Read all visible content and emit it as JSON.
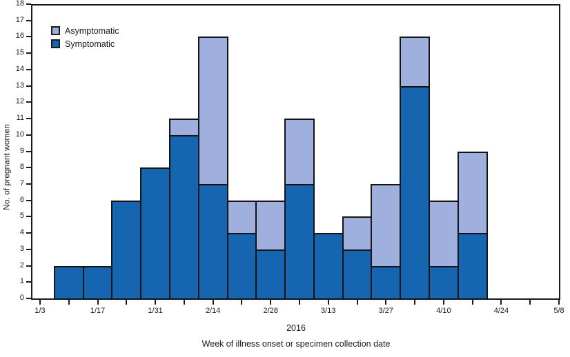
{
  "figure": {
    "ylabel": "No. of pregnant women",
    "x_axis_year": "2016",
    "xlabel": "Week of illness onset or specimen collection date"
  },
  "legend": [
    {
      "label": "Asymptomatic",
      "color": "#a0b0de"
    },
    {
      "label": "Symptomatic",
      "color": "#1665b0"
    }
  ],
  "colors": {
    "symptomatic": "#1665b0",
    "asymptomatic": "#a0b0de",
    "bar_border": "#141414",
    "axis": "#1a1a1a",
    "background": "#ffffff"
  },
  "chart_data": {
    "type": "bar",
    "stacked": true,
    "title": "",
    "xlabel": "Week of illness onset or specimen collection date",
    "x_axis_year": "2016",
    "ylabel": "No. of pregnant women",
    "ylim": [
      0,
      18
    ],
    "y_ticks": [
      0,
      1,
      2,
      3,
      4,
      5,
      6,
      7,
      8,
      9,
      10,
      11,
      12,
      13,
      14,
      15,
      16,
      17,
      18
    ],
    "x_axis_start_label": "1/3",
    "x_axis_end_label": "5/8",
    "x_axis_total_weeks": 18,
    "x_tick_labels": [
      "1/3",
      "1/17",
      "1/31",
      "2/14",
      "2/28",
      "3/13",
      "3/27",
      "4/10",
      "4/24",
      "5/8"
    ],
    "x_tick_label_week_positions": [
      0,
      2,
      4,
      6,
      8,
      10,
      12,
      14,
      16,
      18
    ],
    "minor_ticks_every_week": true,
    "grid": false,
    "legend_position": "top-left-inside",
    "categories": [
      "1/10",
      "1/17",
      "1/24",
      "1/31",
      "2/7",
      "2/14",
      "2/21",
      "2/28",
      "3/6",
      "3/13",
      "3/20",
      "3/27",
      "4/3",
      "4/10",
      "4/17"
    ],
    "category_week_positions": [
      1,
      2,
      3,
      4,
      5,
      6,
      7,
      8,
      9,
      10,
      11,
      12,
      13,
      14,
      15
    ],
    "series": [
      {
        "name": "Symptomatic",
        "color": "#1665b0",
        "values": [
          2,
          2,
          6,
          8,
          10,
          7,
          4,
          3,
          7,
          4,
          3,
          2,
          13,
          2,
          4
        ]
      },
      {
        "name": "Asymptomatic",
        "color": "#a0b0de",
        "values": [
          0,
          0,
          0,
          0,
          1,
          9,
          2,
          3,
          4,
          0,
          2,
          5,
          3,
          4,
          5
        ]
      }
    ],
    "totals": [
      2,
      2,
      6,
      8,
      11,
      16,
      6,
      6,
      11,
      4,
      5,
      7,
      16,
      6,
      9
    ]
  }
}
